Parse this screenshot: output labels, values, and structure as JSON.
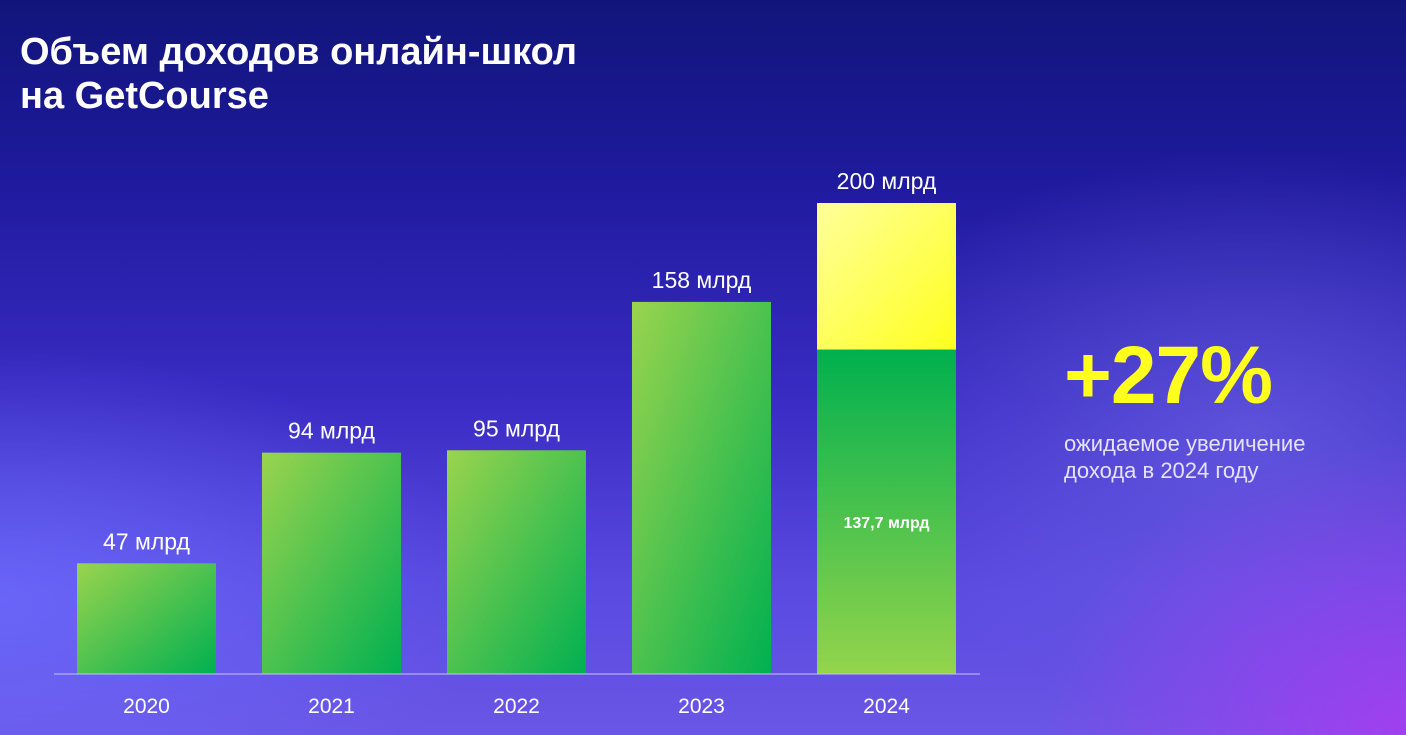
{
  "title": {
    "line1": "Объем доходов онлайн-школ",
    "line2": "на GetCourse"
  },
  "highlight": {
    "value": "+27%",
    "caption_line1": "ожидаемое увеличение",
    "caption_line2": "дохода в 2024 году",
    "color": "#ffff1e"
  },
  "colors": {
    "green_light": "#8fd14f",
    "green_dark": "#00b050",
    "yellow_light": "#ffff99",
    "yellow": "#ffff1e"
  },
  "chart_data": {
    "type": "bar",
    "categories": [
      "2020",
      "2021",
      "2022",
      "2023",
      "2024"
    ],
    "values": [
      47,
      94,
      95,
      158,
      200
    ],
    "value_labels": [
      "47 млрд",
      "94 млрд",
      "95 млрд",
      "158 млрд",
      "200 млрд"
    ],
    "segment_2024": {
      "value": 137.7,
      "label": "137,7 млрд"
    },
    "title": "Объем доходов онлайн-школ на GetCourse",
    "xlabel": "",
    "ylabel": "",
    "ylim": [
      0,
      200
    ],
    "grid": false,
    "legend": "none"
  }
}
